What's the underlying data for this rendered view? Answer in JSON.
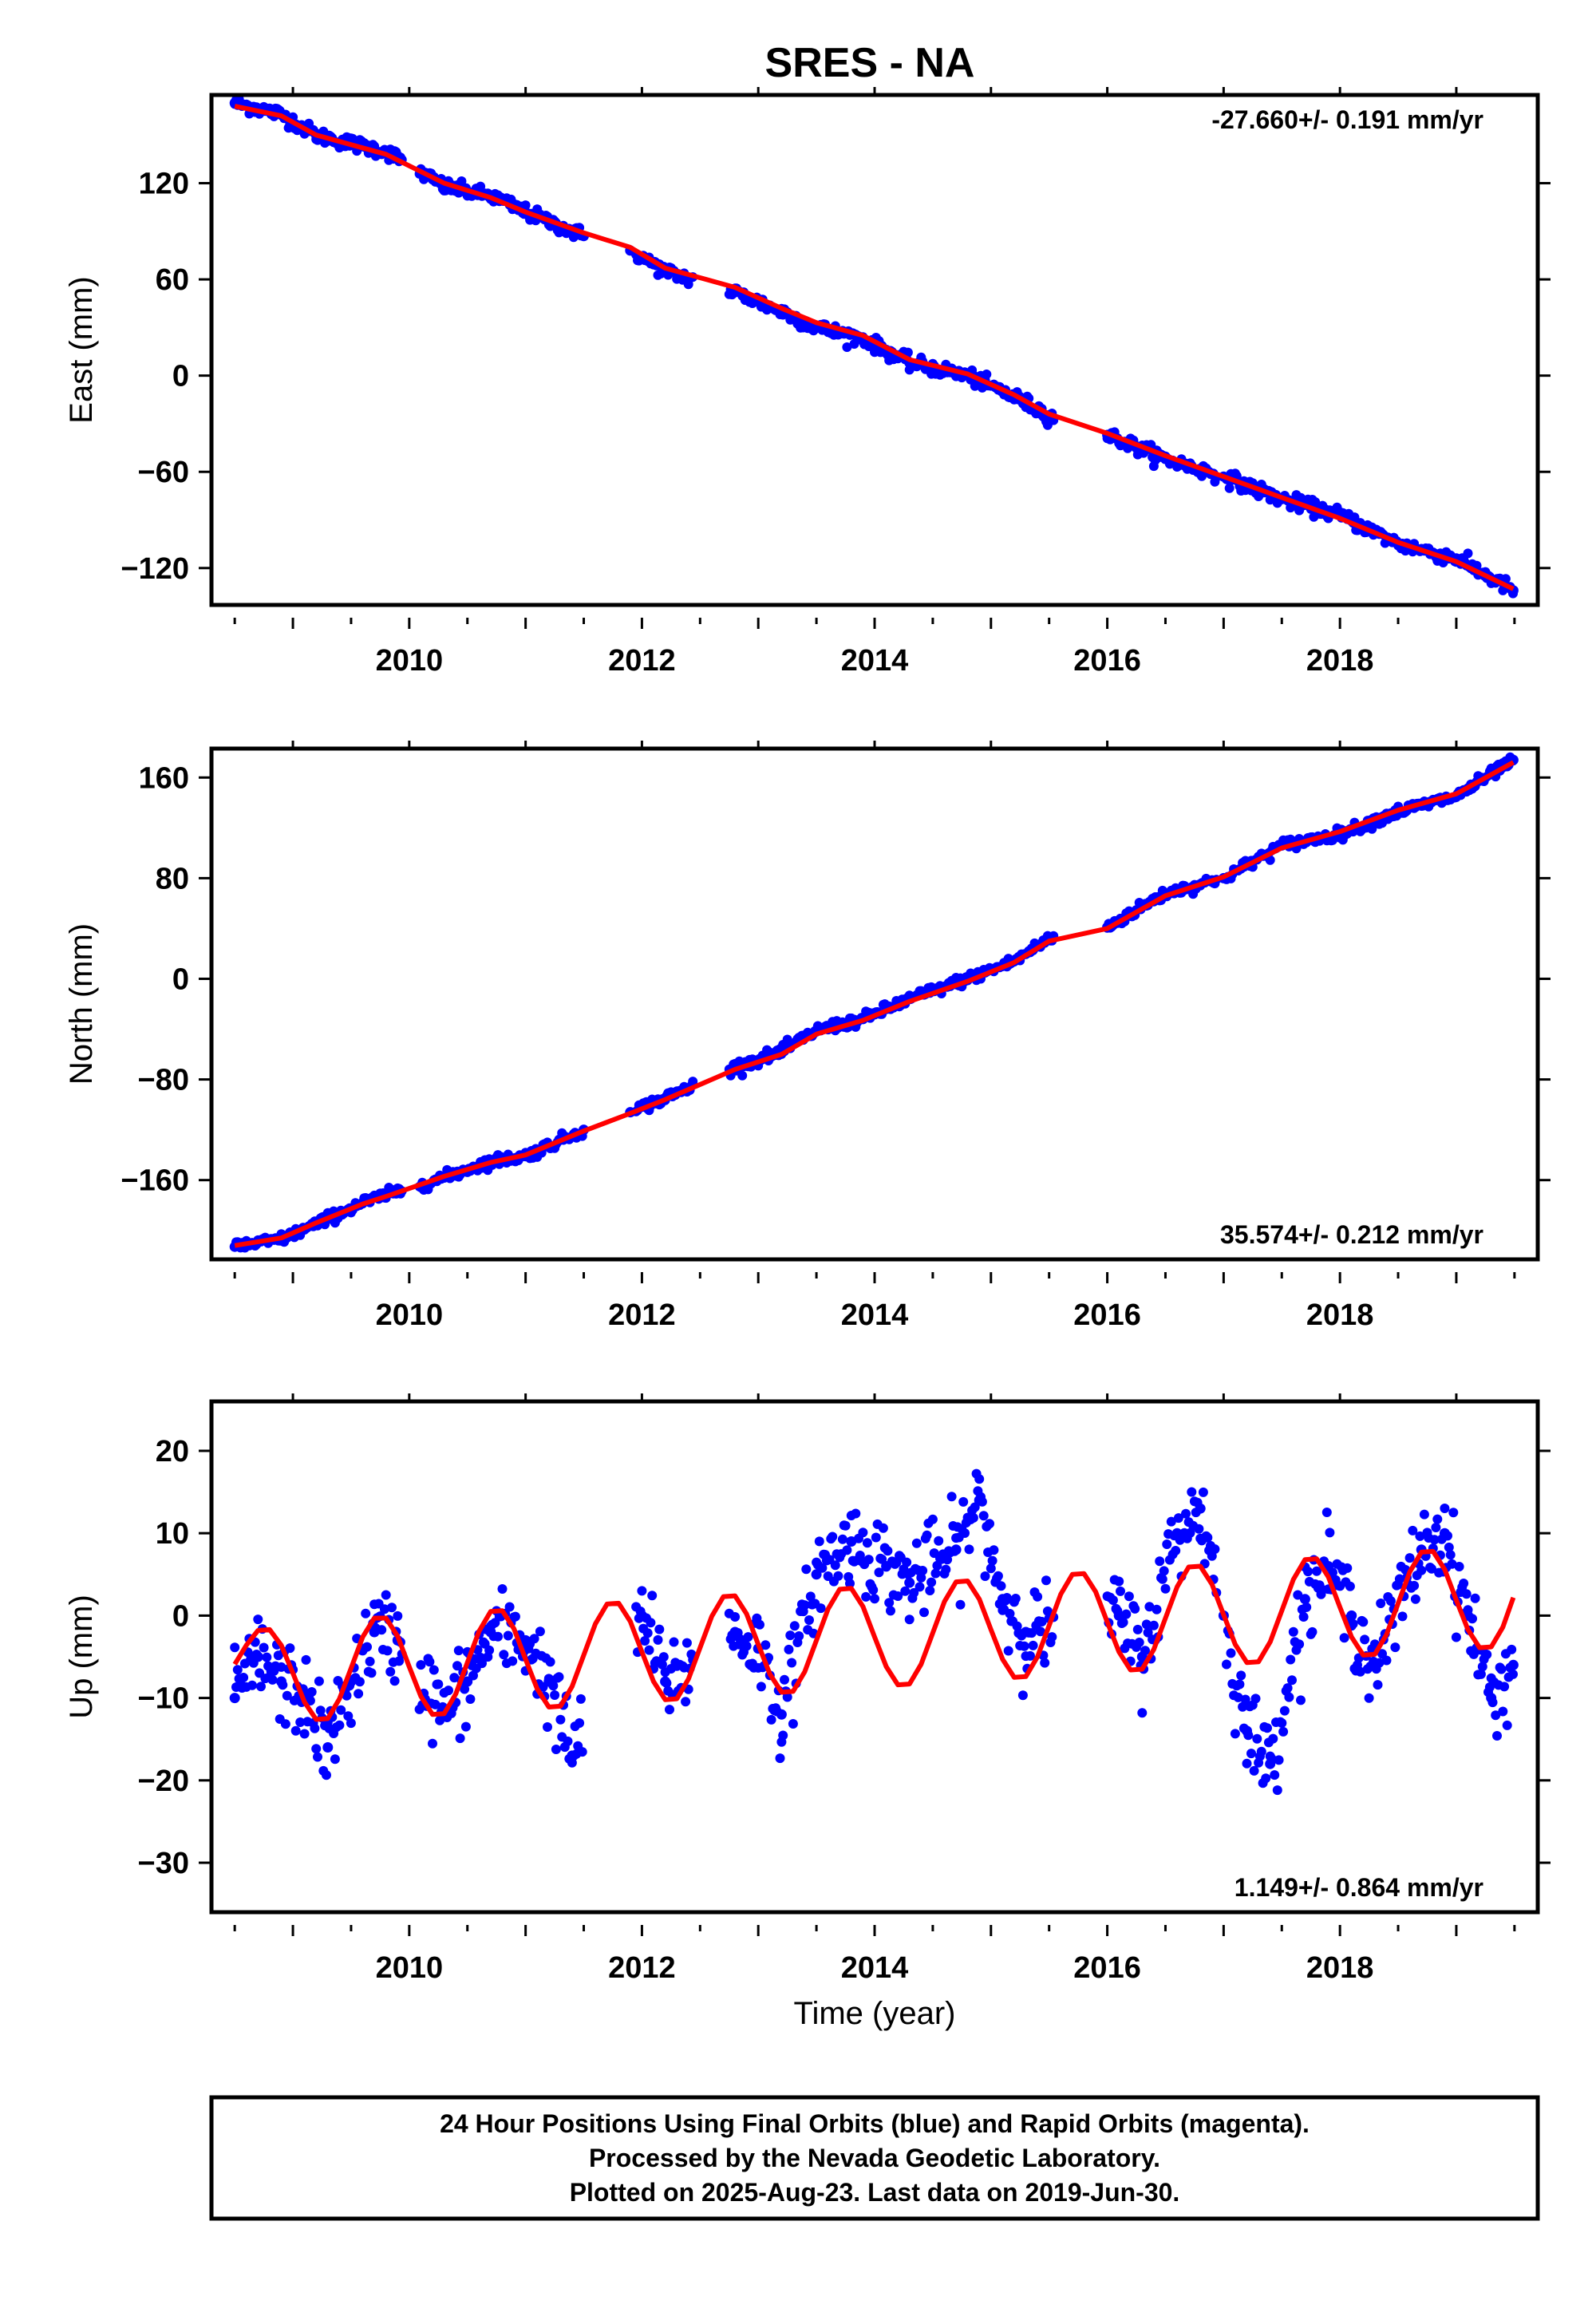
{
  "title": "SRES - NA",
  "colors": {
    "observations": "#0000ff",
    "model": "#ff0000",
    "frame": "#000000"
  },
  "footer": {
    "line1": "24 Hour Positions Using Final Orbits (blue) and Rapid Orbits (magenta).",
    "line2": "Processed by the Nevada Geodetic Laboratory.",
    "line3": "Plotted on 2025-Aug-23. Last data on 2019-Jun-30."
  },
  "chart_data": [
    {
      "type": "scatter",
      "ylabel": "East (mm)",
      "xlabel": "",
      "xlim": [
        2008.3,
        2019.7
      ],
      "ylim": [
        -143,
        175
      ],
      "xticks": [
        "2010",
        "2012",
        "2014",
        "2016",
        "2018"
      ],
      "yticks": [
        "-120",
        "-60",
        "0",
        "60",
        "120"
      ],
      "rate_label": "-27.660+/- 0.191 mm/yr",
      "rate_position": "top-right",
      "series": [
        {
          "role": "observations",
          "color": "#0000ff",
          "x": [
            2008.5,
            2008.9,
            2009.2,
            2009.6,
            2009.8,
            2010.3,
            2010.7,
            2011.0,
            2011.5,
            2011.9,
            2012.2,
            2012.8,
            2013.2,
            2013.5,
            2013.9,
            2014.3,
            2014.8,
            2015.2,
            2015.5,
            2016.0,
            2016.5,
            2017.0,
            2017.5,
            2018.0,
            2018.5,
            2019.0,
            2019.49
          ],
          "y": [
            170,
            163,
            150,
            143,
            140,
            118,
            112,
            102,
            87,
            78,
            65,
            52,
            40,
            30,
            23,
            8,
            0,
            -13,
            -25,
            -37,
            -52,
            -63,
            -77,
            -87,
            -105,
            -114,
            -134
          ]
        },
        {
          "role": "model",
          "color": "#ff0000",
          "x": [
            2008.5,
            2008.9,
            2009.2,
            2009.6,
            2009.8,
            2010.3,
            2010.7,
            2011.0,
            2011.5,
            2011.9,
            2012.2,
            2012.8,
            2013.2,
            2013.5,
            2013.9,
            2014.3,
            2014.8,
            2015.2,
            2015.5,
            2016.0,
            2016.5,
            2017.0,
            2017.5,
            2018.0,
            2018.5,
            2019.0,
            2019.49
          ],
          "y": [
            168,
            162,
            150,
            142,
            138,
            120,
            111,
            102,
            89,
            80,
            67,
            55,
            42,
            33,
            25,
            10,
            1,
            -12,
            -24,
            -36,
            -50,
            -63,
            -76,
            -89,
            -104,
            -116,
            -133
          ]
        }
      ]
    },
    {
      "type": "scatter",
      "ylabel": "North (mm)",
      "xlabel": "",
      "xlim": [
        2008.3,
        2019.7
      ],
      "ylim": [
        -223,
        183
      ],
      "xticks": [
        "2010",
        "2012",
        "2014",
        "2016",
        "2018"
      ],
      "yticks": [
        "-160",
        "-80",
        "0",
        "80",
        "160"
      ],
      "rate_label": "35.574+/- 0.212 mm/yr",
      "rate_position": "bottom-right",
      "series": [
        {
          "role": "observations",
          "color": "#0000ff",
          "x": [
            2008.5,
            2008.9,
            2009.2,
            2009.6,
            2009.8,
            2010.3,
            2010.7,
            2011.0,
            2011.5,
            2011.9,
            2012.2,
            2012.8,
            2013.2,
            2013.5,
            2013.9,
            2014.3,
            2014.8,
            2015.2,
            2015.5,
            2016.0,
            2016.5,
            2017.0,
            2017.5,
            2018.0,
            2018.5,
            2019.0,
            2019.49
          ],
          "y": [
            -213,
            -207,
            -195,
            -178,
            -172,
            -158,
            -145,
            -141,
            -120,
            -106,
            -95,
            -70,
            -58,
            -41,
            -32,
            -16,
            0,
            14,
            32,
            41,
            68,
            80,
            106,
            115,
            133,
            145,
            174
          ]
        },
        {
          "role": "model",
          "color": "#ff0000",
          "x": [
            2008.5,
            2008.9,
            2009.2,
            2009.6,
            2009.8,
            2010.3,
            2010.7,
            2011.0,
            2011.5,
            2011.9,
            2012.2,
            2012.8,
            2013.2,
            2013.5,
            2013.9,
            2014.3,
            2014.8,
            2015.2,
            2015.5,
            2016.0,
            2016.5,
            2017.0,
            2017.5,
            2018.0,
            2018.5,
            2019.0,
            2019.49
          ],
          "y": [
            -212,
            -206,
            -194,
            -179,
            -173,
            -157,
            -146,
            -140,
            -121,
            -107,
            -96,
            -72,
            -60,
            -44,
            -33,
            -18,
            -2,
            13,
            30,
            40,
            66,
            81,
            104,
            117,
            134,
            147,
            172
          ]
        }
      ]
    },
    {
      "type": "scatter",
      "ylabel": "Up (mm)",
      "xlabel": "Time (year)",
      "xlim": [
        2008.3,
        2019.7
      ],
      "ylim": [
        -36,
        26
      ],
      "xticks": [
        "2010",
        "2012",
        "2014",
        "2016",
        "2018"
      ],
      "yticks": [
        "-30",
        "-20",
        "-10",
        "0",
        "10",
        "20"
      ],
      "rate_label": "1.149+/- 0.864 mm/yr",
      "rate_position": "bottom-right",
      "series": [
        {
          "role": "observations",
          "color": "#0000ff",
          "x": [
            2008.5,
            2008.7,
            2008.9,
            2009.1,
            2009.3,
            2009.5,
            2009.7,
            2009.9,
            2010.3,
            2010.5,
            2010.7,
            2011.0,
            2011.2,
            2011.4,
            2012.0,
            2012.2,
            2012.8,
            2013.0,
            2013.2,
            2013.5,
            2013.8,
            2014.1,
            2014.3,
            2014.7,
            2014.9,
            2015.1,
            2015.3,
            2016.1,
            2016.3,
            2016.6,
            2016.8,
            2017.0,
            2017.2,
            2017.4,
            2017.7,
            2017.9,
            2018.1,
            2018.3,
            2018.7,
            2018.9,
            2019.1,
            2019.3,
            2019.49
          ],
          "y": [
            -10,
            -5,
            -8,
            -10,
            -16,
            -8,
            -2,
            -3,
            -12,
            -8,
            -2,
            -3,
            -8,
            -17,
            0,
            -8,
            -2,
            -4,
            -12,
            5,
            9,
            6,
            4,
            8,
            14,
            2,
            -2,
            0,
            -5,
            10,
            13,
            0,
            -14,
            -18,
            2,
            6,
            0,
            -6,
            8,
            10,
            0,
            -10,
            -6
          ]
        },
        {
          "role": "model",
          "color": "#ff0000",
          "x": [
            2008.5,
            2008.6,
            2008.7,
            2008.8,
            2008.9,
            2009.0,
            2009.1,
            2009.2,
            2009.3,
            2009.4,
            2009.5,
            2009.6,
            2009.7,
            2009.8,
            2009.9,
            2010.0,
            2010.1,
            2010.2,
            2010.3,
            2010.4,
            2010.5,
            2010.6,
            2010.7,
            2010.8,
            2010.9,
            2011.0,
            2011.1,
            2011.2,
            2011.3,
            2011.4,
            2011.5,
            2011.6,
            2011.7,
            2011.8,
            2011.9,
            2012.0,
            2012.1,
            2012.2,
            2012.3,
            2012.4,
            2012.5,
            2012.6,
            2012.7,
            2012.8,
            2012.9,
            2013.0,
            2013.1,
            2013.2,
            2013.3,
            2013.4,
            2013.5,
            2013.6,
            2013.7,
            2013.8,
            2013.9,
            2014.0,
            2014.1,
            2014.2,
            2014.3,
            2014.4,
            2014.5,
            2014.6,
            2014.7,
            2014.8,
            2014.9,
            2015.0,
            2015.1,
            2015.2,
            2015.3,
            2015.4,
            2015.5,
            2015.6,
            2015.7,
            2015.8,
            2015.9,
            2016.0,
            2016.1,
            2016.2,
            2016.3,
            2016.4,
            2016.5,
            2016.6,
            2016.7,
            2016.8,
            2016.9,
            2017.0,
            2017.1,
            2017.2,
            2017.3,
            2017.4,
            2017.5,
            2017.6,
            2017.7,
            2017.8,
            2017.9,
            2018.0,
            2018.1,
            2018.2,
            2018.3,
            2018.4,
            2018.5,
            2018.6,
            2018.7,
            2018.8,
            2018.9,
            2019.0,
            2019.1,
            2019.2,
            2019.3,
            2019.4,
            2019.49
          ],
          "y": [
            -5.9,
            -3.6,
            -1.8,
            -1.7,
            -3.6,
            -7.0,
            -10.5,
            -12.6,
            -12.5,
            -10.1,
            -6.4,
            -2.6,
            -0.3,
            -0.3,
            -2.5,
            -6.2,
            -9.8,
            -12.0,
            -11.9,
            -9.5,
            -5.7,
            -1.9,
            0.5,
            0.6,
            -1.6,
            -5.3,
            -8.9,
            -11.1,
            -11.0,
            -8.6,
            -4.8,
            -1.0,
            1.4,
            1.5,
            -0.7,
            -4.4,
            -8.0,
            -10.2,
            -10.1,
            -7.7,
            -3.9,
            -0.1,
            2.3,
            2.4,
            0.2,
            -3.5,
            -7.1,
            -9.3,
            -9.2,
            -6.8,
            -3.0,
            0.8,
            3.2,
            3.3,
            1.1,
            -2.6,
            -6.2,
            -8.4,
            -8.3,
            -5.9,
            -2.1,
            1.7,
            4.1,
            4.2,
            2.0,
            -1.7,
            -5.3,
            -7.5,
            -7.4,
            -5.0,
            -1.2,
            2.6,
            5.0,
            5.1,
            2.9,
            -0.8,
            -4.4,
            -6.6,
            -6.5,
            -4.1,
            -0.3,
            3.5,
            5.9,
            6.0,
            3.8,
            0.1,
            -3.5,
            -5.7,
            -5.6,
            -3.2,
            0.6,
            4.4,
            6.8,
            6.9,
            4.7,
            1.0,
            -2.6,
            -4.8,
            -4.7,
            -2.3,
            1.5,
            5.3,
            7.7,
            7.8,
            5.6,
            1.9,
            -1.7,
            -3.9,
            -3.8,
            -1.4,
            2.2
          ]
        }
      ]
    }
  ]
}
